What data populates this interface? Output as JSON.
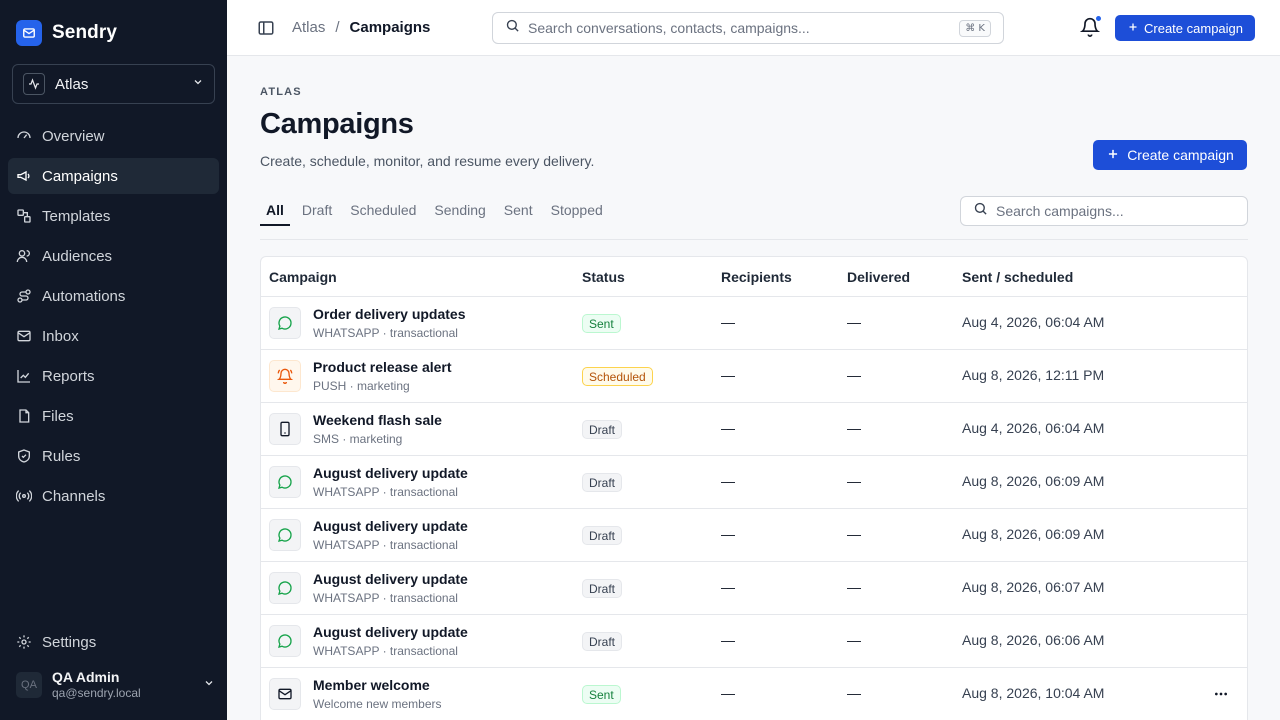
{
  "app": {
    "name": "Sendry"
  },
  "workspace": {
    "name": "Atlas"
  },
  "sidebar": {
    "items": [
      {
        "label": "Overview",
        "icon": "gauge-icon"
      },
      {
        "label": "Campaigns",
        "icon": "megaphone-icon",
        "active": true
      },
      {
        "label": "Templates",
        "icon": "templates-icon"
      },
      {
        "label": "Audiences",
        "icon": "users-icon"
      },
      {
        "label": "Automations",
        "icon": "route-icon"
      },
      {
        "label": "Inbox",
        "icon": "inbox-icon"
      },
      {
        "label": "Reports",
        "icon": "chart-icon"
      },
      {
        "label": "Files",
        "icon": "files-icon"
      },
      {
        "label": "Rules",
        "icon": "shield-icon"
      },
      {
        "label": "Channels",
        "icon": "radio-icon"
      }
    ],
    "settings_label": "Settings"
  },
  "user": {
    "initials": "QA",
    "name": "QA Admin",
    "email": "qa@sendry.local"
  },
  "topbar": {
    "breadcrumb": [
      "Atlas",
      "Campaigns"
    ],
    "breadcrumb_sep": "/",
    "search_placeholder": "Search conversations, contacts, campaigns...",
    "shortcut": "⌘ K",
    "create_label": "Create campaign"
  },
  "page": {
    "eyebrow": "ATLAS",
    "title": "Campaigns",
    "subtitle": "Create, schedule, monitor, and resume every delivery.",
    "create_label": "Create campaign",
    "tabs": [
      "All",
      "Draft",
      "Scheduled",
      "Sending",
      "Sent",
      "Stopped"
    ],
    "search_placeholder": "Search campaigns..."
  },
  "table": {
    "headers": {
      "campaign": "Campaign",
      "status": "Status",
      "recipients": "Recipients",
      "delivered": "Delivered",
      "sent": "Sent / scheduled"
    },
    "rows": [
      {
        "name": "Order delivery updates",
        "meta": "WHATSAPP · transactional",
        "channel": "whatsapp",
        "status": "Sent",
        "status_kind": "sent",
        "recipients": "—",
        "delivered": "—",
        "sent": "Aug 4, 2026, 06:04 AM"
      },
      {
        "name": "Product release alert",
        "meta": "PUSH · marketing",
        "channel": "push",
        "status": "Scheduled",
        "status_kind": "scheduled",
        "recipients": "—",
        "delivered": "—",
        "sent": "Aug 8, 2026, 12:11 PM"
      },
      {
        "name": "Weekend flash sale",
        "meta": "SMS · marketing",
        "channel": "sms",
        "status": "Draft",
        "status_kind": "draft",
        "recipients": "—",
        "delivered": "—",
        "sent": "Aug 4, 2026, 06:04 AM"
      },
      {
        "name": "August delivery update",
        "meta": "WHATSAPP · transactional",
        "channel": "whatsapp",
        "status": "Draft",
        "status_kind": "draft",
        "recipients": "—",
        "delivered": "—",
        "sent": "Aug 8, 2026, 06:09 AM"
      },
      {
        "name": "August delivery update",
        "meta": "WHATSAPP · transactional",
        "channel": "whatsapp",
        "status": "Draft",
        "status_kind": "draft",
        "recipients": "—",
        "delivered": "—",
        "sent": "Aug 8, 2026, 06:09 AM"
      },
      {
        "name": "August delivery update",
        "meta": "WHATSAPP · transactional",
        "channel": "whatsapp",
        "status": "Draft",
        "status_kind": "draft",
        "recipients": "—",
        "delivered": "—",
        "sent": "Aug 8, 2026, 06:07 AM"
      },
      {
        "name": "August delivery update",
        "meta": "WHATSAPP · transactional",
        "channel": "whatsapp",
        "status": "Draft",
        "status_kind": "draft",
        "recipients": "—",
        "delivered": "—",
        "sent": "Aug 8, 2026, 06:06 AM"
      },
      {
        "name": "Member welcome",
        "meta": "Welcome new members",
        "channel": "email",
        "status": "Sent",
        "status_kind": "sent",
        "recipients": "—",
        "delivered": "—",
        "sent": "Aug 8, 2026, 10:04 AM"
      }
    ]
  },
  "colors": {
    "sidebar_bg": "#111827",
    "accent": "#1d4ed8",
    "whatsapp": "#16a34a",
    "push": "#ea580c"
  }
}
